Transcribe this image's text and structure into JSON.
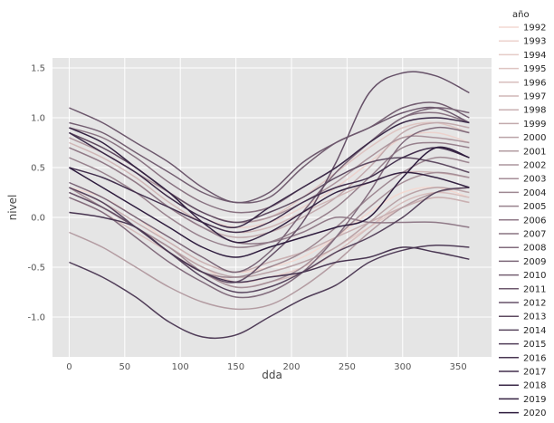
{
  "chart_data": {
    "type": "line",
    "xlabel": "dda",
    "ylabel": "nivel",
    "xlim": [
      -15,
      380
    ],
    "ylim": [
      -1.4,
      1.6
    ],
    "xticks": [
      "0",
      "50",
      "100",
      "150",
      "200",
      "250",
      "300",
      "350"
    ],
    "yticks": [
      "-1.0",
      "-0.5",
      "0.0",
      "0.5",
      "1.0",
      "1.5"
    ],
    "grid": true,
    "legend": {
      "title": "año",
      "placement": "outside-right"
    },
    "colors": {
      "light": "#f3d9d2",
      "dark": "#2d1b3d",
      "background": "#e5e5e5",
      "grid": "#ffffff"
    },
    "x": [
      0,
      30,
      60,
      90,
      120,
      150,
      180,
      210,
      240,
      270,
      300,
      330,
      360
    ],
    "series": [
      {
        "name": "1992",
        "values": [
          0.3,
          0.2,
          0.0,
          -0.25,
          -0.45,
          -0.55,
          -0.5,
          -0.4,
          -0.2,
          0.05,
          0.25,
          0.3,
          0.2
        ]
      },
      {
        "name": "1993",
        "values": [
          0.8,
          0.65,
          0.45,
          0.2,
          0.0,
          -0.1,
          -0.05,
          0.1,
          0.3,
          0.55,
          0.8,
          0.85,
          0.75
        ]
      },
      {
        "name": "1994",
        "values": [
          0.25,
          0.1,
          -0.1,
          -0.3,
          -0.5,
          -0.65,
          -0.6,
          -0.5,
          -0.3,
          -0.1,
          0.1,
          0.2,
          0.15
        ]
      },
      {
        "name": "1995",
        "values": [
          0.85,
          0.7,
          0.5,
          0.25,
          0.05,
          -0.05,
          0.0,
          0.2,
          0.45,
          0.7,
          0.9,
          0.95,
          0.85
        ]
      },
      {
        "name": "1996",
        "values": [
          0.2,
          0.05,
          -0.15,
          -0.35,
          -0.55,
          -0.7,
          -0.65,
          -0.55,
          -0.35,
          -0.1,
          0.15,
          0.25,
          0.2
        ]
      },
      {
        "name": "1997",
        "values": [
          0.75,
          0.6,
          0.4,
          0.15,
          -0.05,
          -0.15,
          -0.1,
          0.05,
          0.2,
          0.35,
          0.45,
          0.45,
          0.4
        ]
      },
      {
        "name": "1998",
        "values": [
          0.3,
          0.15,
          -0.05,
          -0.25,
          -0.45,
          -0.55,
          -0.45,
          -0.35,
          -0.2,
          -0.05,
          0.1,
          0.2,
          0.15
        ]
      },
      {
        "name": "1999",
        "values": [
          0.7,
          0.55,
          0.35,
          0.1,
          -0.1,
          -0.2,
          -0.15,
          0.0,
          0.2,
          0.5,
          0.85,
          0.95,
          0.9
        ]
      },
      {
        "name": "2000",
        "values": [
          0.25,
          0.1,
          -0.1,
          -0.3,
          -0.5,
          -0.6,
          -0.55,
          -0.45,
          -0.3,
          -0.05,
          0.2,
          0.3,
          0.25
        ]
      },
      {
        "name": "2001",
        "values": [
          -0.15,
          -0.3,
          -0.5,
          -0.7,
          -0.85,
          -0.92,
          -0.88,
          -0.7,
          -0.45,
          -0.15,
          0.1,
          0.25,
          0.3
        ]
      },
      {
        "name": "2002",
        "values": [
          0.8,
          0.65,
          0.45,
          0.25,
          0.05,
          -0.05,
          0.0,
          0.15,
          0.35,
          0.6,
          0.8,
          0.8,
          0.75
        ]
      },
      {
        "name": "2003",
        "values": [
          0.3,
          0.1,
          -0.1,
          -0.3,
          -0.55,
          -0.7,
          -0.65,
          -0.5,
          -0.2,
          0.1,
          0.35,
          0.45,
          0.4
        ]
      },
      {
        "name": "2004",
        "values": [
          0.25,
          0.1,
          -0.1,
          -0.35,
          -0.55,
          -0.6,
          -0.5,
          -0.35,
          -0.1,
          0.2,
          0.45,
          0.6,
          0.55
        ]
      },
      {
        "name": "2005",
        "values": [
          0.6,
          0.45,
          0.25,
          0.0,
          -0.2,
          -0.3,
          -0.25,
          -0.1,
          0.1,
          0.4,
          0.7,
          0.75,
          0.7
        ]
      },
      {
        "name": "2006",
        "values": [
          0.7,
          0.55,
          0.35,
          0.1,
          -0.1,
          -0.25,
          -0.25,
          -0.15,
          0.0,
          -0.05,
          -0.05,
          -0.05,
          -0.1
        ]
      },
      {
        "name": "2007",
        "values": [
          0.9,
          0.8,
          0.6,
          0.35,
          0.15,
          0.05,
          0.1,
          0.3,
          0.5,
          0.75,
          1.0,
          1.05,
          0.95
        ]
      },
      {
        "name": "2008",
        "values": [
          0.2,
          0.05,
          -0.2,
          -0.45,
          -0.65,
          -0.8,
          -0.75,
          -0.55,
          -0.2,
          0.25,
          0.75,
          0.9,
          0.85
        ]
      },
      {
        "name": "2009",
        "values": [
          0.35,
          0.2,
          0.0,
          -0.2,
          -0.4,
          -0.55,
          -0.35,
          0.05,
          0.45,
          0.75,
          1.0,
          1.1,
          1.05
        ]
      },
      {
        "name": "2010",
        "values": [
          0.95,
          0.85,
          0.65,
          0.45,
          0.25,
          0.15,
          0.2,
          0.5,
          0.75,
          0.9,
          1.1,
          1.15,
          1.0
        ]
      },
      {
        "name": "2011",
        "values": [
          1.1,
          0.95,
          0.75,
          0.55,
          0.3,
          0.15,
          0.25,
          0.55,
          0.75,
          0.9,
          1.05,
          1.1,
          0.95
        ]
      },
      {
        "name": "2012",
        "values": [
          0.25,
          0.1,
          -0.1,
          -0.35,
          -0.55,
          -0.65,
          -0.4,
          -0.05,
          0.55,
          1.25,
          1.45,
          1.42,
          1.25
        ]
      },
      {
        "name": "2013",
        "values": [
          0.85,
          0.7,
          0.5,
          0.25,
          0.05,
          -0.05,
          0.05,
          0.2,
          0.4,
          0.55,
          0.6,
          0.55,
          0.45
        ]
      },
      {
        "name": "2014",
        "values": [
          0.3,
          0.15,
          -0.1,
          -0.35,
          -0.6,
          -0.75,
          -0.7,
          -0.55,
          -0.35,
          -0.2,
          0.0,
          0.25,
          0.3
        ]
      },
      {
        "name": "2015",
        "values": [
          -0.45,
          -0.6,
          -0.8,
          -1.05,
          -1.2,
          -1.18,
          -1.0,
          -0.82,
          -0.68,
          -0.45,
          -0.33,
          -0.28,
          -0.3
        ]
      },
      {
        "name": "2016",
        "values": [
          0.05,
          0.0,
          -0.1,
          -0.35,
          -0.55,
          -0.65,
          -0.6,
          -0.55,
          -0.45,
          -0.4,
          -0.3,
          -0.35,
          -0.42
        ]
      },
      {
        "name": "2017",
        "values": [
          0.5,
          0.4,
          0.25,
          0.1,
          -0.05,
          -0.15,
          -0.05,
          0.15,
          0.3,
          0.4,
          0.6,
          0.7,
          0.6
        ]
      },
      {
        "name": "2018",
        "values": [
          0.85,
          0.65,
          0.45,
          0.2,
          0.0,
          -0.1,
          0.1,
          0.3,
          0.5,
          0.75,
          0.95,
          1.0,
          0.95
        ]
      },
      {
        "name": "2019",
        "values": [
          0.9,
          0.75,
          0.5,
          0.25,
          -0.05,
          -0.25,
          -0.15,
          0.05,
          0.25,
          0.35,
          0.45,
          0.4,
          0.3
        ]
      },
      {
        "name": "2020",
        "values": [
          0.5,
          0.3,
          0.1,
          -0.1,
          -0.3,
          -0.4,
          -0.3,
          -0.2,
          -0.1,
          0.0,
          0.4,
          0.7,
          0.6
        ]
      }
    ]
  }
}
